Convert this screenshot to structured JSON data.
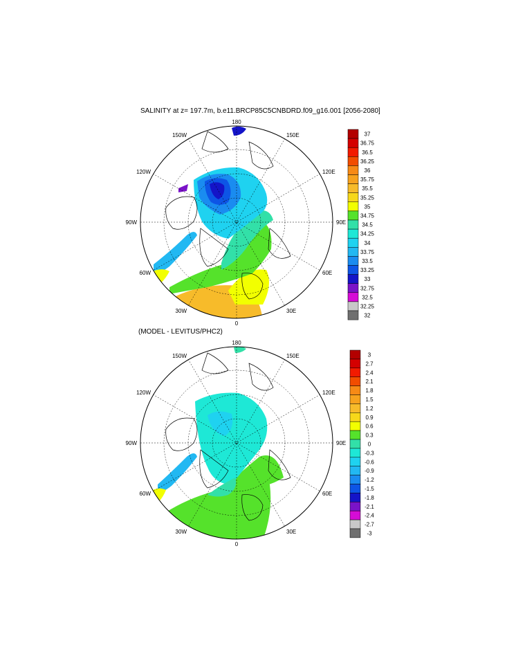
{
  "panels": [
    {
      "title": "SALINITY at z= 197.7m, b.e11.BRCP85C5CNBDRD.f09_g16.001 [2056-2080]",
      "longitude_labels": {
        "top": "180",
        "bottom": "0",
        "left": "90W",
        "right": "90E",
        "upper_left": "150W",
        "upper_right": "150E",
        "mid_left": "120W",
        "mid_right": "120E",
        "lower_left": "60W",
        "lower_right": "60E",
        "bottom_left": "30W",
        "bottom_right": "30E"
      },
      "colorbar": {
        "levels": [
          "37",
          "36.75",
          "36.5",
          "36.25",
          "36",
          "35.75",
          "35.5",
          "35.25",
          "35",
          "34.75",
          "34.5",
          "34.25",
          "34",
          "33.75",
          "33.5",
          "33.25",
          "33",
          "32.75",
          "32.5",
          "32.25",
          "32"
        ],
        "colors": [
          "#b30000",
          "#d40000",
          "#f21a00",
          "#f24d00",
          "#f78a16",
          "#f7a21e",
          "#f7bb2a",
          "#f7d81a",
          "#f2ff00",
          "#55e22b",
          "#32e0a8",
          "#1ee8d6",
          "#1fd2f0",
          "#22b8f2",
          "#1a8cf0",
          "#0d55e6",
          "#1414c8",
          "#7a13c8",
          "#d60cd6",
          "#c8c8c8",
          "#707070"
        ]
      }
    },
    {
      "title": "(MODEL - LEVITUS/PHC2)",
      "longitude_labels": {
        "top": "180",
        "bottom": "0",
        "left": "90W",
        "right": "90E",
        "upper_left": "150W",
        "upper_right": "150E",
        "mid_left": "120W",
        "mid_right": "120E",
        "lower_left": "60W",
        "lower_right": "60E",
        "bottom_left": "30W",
        "bottom_right": "30E"
      },
      "colorbar": {
        "levels": [
          "3",
          "2.7",
          "2.4",
          "2.1",
          "1.8",
          "1.5",
          "1.2",
          "0.9",
          "0.6",
          "0.3",
          "0",
          "-0.3",
          "-0.6",
          "-0.9",
          "-1.2",
          "-1.5",
          "-1.8",
          "-2.1",
          "-2.4",
          "-2.7",
          "-3"
        ],
        "colors": [
          "#b30000",
          "#d40000",
          "#f21a00",
          "#f24d00",
          "#f78a16",
          "#f7a21e",
          "#f7bb2a",
          "#f7d81a",
          "#f2ff00",
          "#55e22b",
          "#32e0a8",
          "#1ee8d6",
          "#1fd2f0",
          "#22b8f2",
          "#1a8cf0",
          "#0d55e6",
          "#1414c8",
          "#7a13c8",
          "#d60cd6",
          "#c8c8c8",
          "#707070"
        ]
      }
    }
  ]
}
